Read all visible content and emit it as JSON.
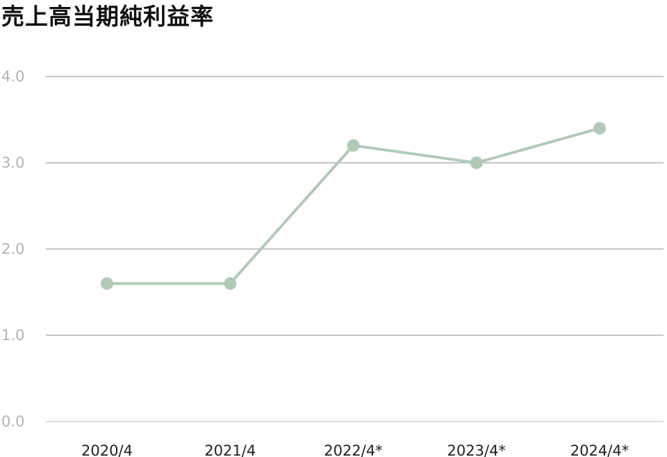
{
  "chart_data": {
    "type": "line",
    "title": "売上高当期純利益率",
    "xlabel": "",
    "ylabel": "",
    "categories": [
      "2020/4",
      "2021/4",
      "2022/4*",
      "2023/4*",
      "2024/4*"
    ],
    "series": [
      {
        "values": [
          1.6,
          1.6,
          3.2,
          3.0,
          3.4
        ]
      }
    ],
    "ylim": [
      0,
      4
    ],
    "yticks": [
      "0.0",
      "1.0",
      "2.0",
      "3.0",
      "4.0"
    ],
    "grid": true,
    "legend": "none",
    "colors": {
      "line": "#b2c9b8",
      "grid": "#c6c6c6",
      "baseline": "#dddddd",
      "ytick_text": "#b3b3b3",
      "xtick_text": "#222222",
      "title_text": "#111111"
    }
  }
}
